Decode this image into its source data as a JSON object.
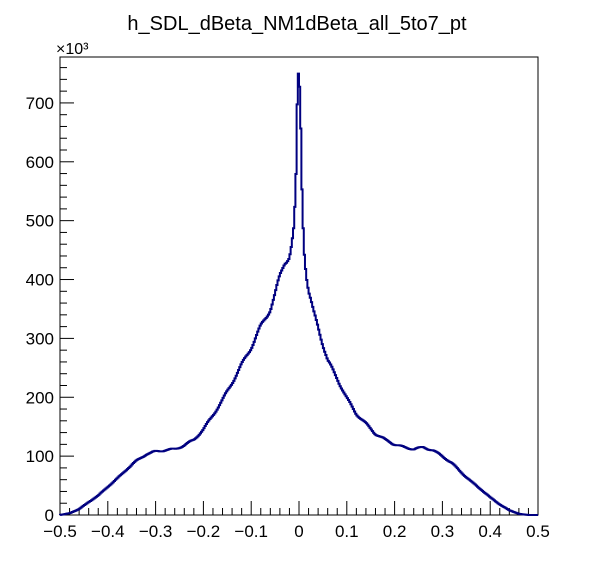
{
  "chart_data": {
    "type": "histogram",
    "title": "h_SDL_dBeta_NM1dBeta_all_5to7_pt",
    "xlabel": "",
    "ylabel": "",
    "xlim": [
      -0.5,
      0.5
    ],
    "ylim": [
      0,
      778000
    ],
    "y_multiplier_label": "×10³",
    "y_multiplier": 1000,
    "x_ticks": [
      -0.5,
      -0.4,
      -0.3,
      -0.2,
      -0.1,
      0,
      0.1,
      0.2,
      0.3,
      0.4,
      0.5
    ],
    "x_tick_labels": [
      "−0.5",
      "−0.4",
      "−0.3",
      "−0.2",
      "−0.1",
      "0",
      "0.1",
      "0.2",
      "0.3",
      "0.4",
      "0.5"
    ],
    "y_ticks": [
      0,
      100000,
      200000,
      300000,
      400000,
      500000,
      600000,
      700000
    ],
    "y_tick_labels": [
      "0",
      "100",
      "200",
      "300",
      "400",
      "500",
      "600",
      "700"
    ],
    "grid": false,
    "legend": "none",
    "line_color": "#000080",
    "series": [
      {
        "x": [
          -0.5,
          -0.48,
          -0.46,
          -0.44,
          -0.42,
          -0.4,
          -0.38,
          -0.36,
          -0.34,
          -0.32,
          -0.3,
          -0.28,
          -0.26,
          -0.24,
          -0.22,
          -0.2,
          -0.18,
          -0.16,
          -0.14,
          -0.12,
          -0.1,
          -0.08,
          -0.06,
          -0.05,
          -0.04,
          -0.03,
          -0.02,
          -0.015,
          -0.01,
          -0.005,
          -0.003,
          0,
          0.003,
          0.005,
          0.01,
          0.015,
          0.02,
          0.03,
          0.04,
          0.05,
          0.06,
          0.08,
          0.1,
          0.12,
          0.14,
          0.16,
          0.18,
          0.2,
          0.22,
          0.24,
          0.26,
          0.28,
          0.3,
          0.32,
          0.34,
          0.36,
          0.38,
          0.4,
          0.42,
          0.44,
          0.46,
          0.48,
          0.5
        ],
        "y": [
          0,
          3000,
          10000,
          22000,
          33000,
          48000,
          62000,
          78000,
          92000,
          103000,
          108000,
          110000,
          112000,
          118000,
          128000,
          145000,
          170000,
          195000,
          225000,
          255000,
          285000,
          320000,
          350000,
          375000,
          405000,
          430000,
          440000,
          460000,
          490000,
          600000,
          745000,
          745000,
          700000,
          590000,
          460000,
          410000,
          380000,
          345000,
          320000,
          290000,
          262000,
          232000,
          198000,
          172000,
          155000,
          138000,
          128000,
          120000,
          115000,
          112000,
          115000,
          110000,
          100000,
          88000,
          72000,
          57000,
          44000,
          30000,
          18000,
          8000,
          2000,
          0,
          0
        ]
      }
    ]
  }
}
